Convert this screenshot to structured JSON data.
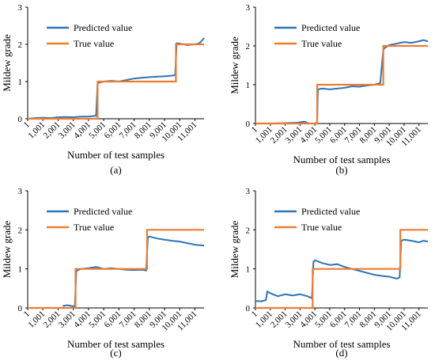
{
  "chart_data": [
    {
      "type": "line",
      "panel_label": "(a)",
      "xlabel": "Number of test samples",
      "ylabel": "Mildew grade",
      "ylim": [
        0,
        3
      ],
      "yticks": [
        "0",
        "1",
        "2",
        "3"
      ],
      "xticks": [
        "1",
        "1,001",
        "2,001",
        "3,001",
        "4,001",
        "5,001",
        "6,001",
        "7,001",
        "8,001",
        "9,001",
        "10,001",
        "11,001"
      ],
      "xlim": [
        1,
        11601
      ],
      "legend": "top-left",
      "series": [
        {
          "name": "Predicted value",
          "color": "#2E75B6",
          "x": [
            1,
            500,
            1000,
            1500,
            2000,
            2500,
            3000,
            3500,
            4000,
            4500,
            4600,
            4700,
            5000,
            5500,
            6000,
            6500,
            7000,
            7500,
            8000,
            8500,
            9000,
            9500,
            9700,
            9800,
            10000,
            10500,
            11000,
            11300,
            11500,
            11601
          ],
          "y": [
            0.0,
            0.02,
            0.03,
            0.02,
            0.04,
            0.05,
            0.04,
            0.06,
            0.06,
            0.08,
            0.95,
            0.97,
            1.0,
            1.02,
            1.0,
            1.04,
            1.08,
            1.1,
            1.12,
            1.13,
            1.14,
            1.16,
            1.17,
            2.03,
            2.02,
            1.98,
            2.0,
            2.03,
            2.12,
            2.17
          ]
        },
        {
          "name": "True value",
          "color": "#ED7D31",
          "x": [
            1,
            4600,
            4600,
            9750,
            9750,
            11601
          ],
          "y": [
            0,
            0,
            1,
            1,
            2,
            2
          ]
        }
      ]
    },
    {
      "type": "line",
      "panel_label": "(b)",
      "xlabel": "Number of test samples",
      "ylabel": "Mildew grade",
      "ylim": [
        0,
        3
      ],
      "yticks": [
        "0",
        "1",
        "2",
        "3"
      ],
      "xticks": [
        "1",
        "1,001",
        "2,001",
        "3,001",
        "4,001",
        "5,001",
        "6,001",
        "7,001",
        "8,001",
        "9,001",
        "10,001",
        "11,001"
      ],
      "xlim": [
        1,
        11601
      ],
      "legend": "top-left",
      "series": [
        {
          "name": "Predicted value",
          "color": "#2E75B6",
          "x": [
            1,
            1000,
            2000,
            2800,
            3300,
            3600,
            4000,
            4150,
            4200,
            4500,
            5000,
            5500,
            6000,
            6500,
            7000,
            7500,
            8000,
            8400,
            8600,
            8700,
            9000,
            9500,
            10000,
            10500,
            11000,
            11300,
            11601
          ],
          "y": [
            0.0,
            0.0,
            0.01,
            0.02,
            0.05,
            0.0,
            0.0,
            0.02,
            0.88,
            0.9,
            0.88,
            0.9,
            0.92,
            0.96,
            0.95,
            0.98,
            1.0,
            1.04,
            1.9,
            1.95,
            2.02,
            2.06,
            2.1,
            2.08,
            2.12,
            2.15,
            2.12
          ]
        },
        {
          "name": "True value",
          "color": "#ED7D31",
          "x": [
            1,
            4150,
            4150,
            8600,
            8600,
            11601
          ],
          "y": [
            0,
            0,
            1,
            1,
            2,
            2
          ]
        }
      ]
    },
    {
      "type": "line",
      "panel_label": "(c)",
      "xlabel": "Number of test samples",
      "ylabel": "Mildew grade",
      "ylim": [
        0,
        3
      ],
      "yticks": [
        "0",
        "1",
        "2",
        "3"
      ],
      "xticks": [
        "1",
        "1,001",
        "2,001",
        "3,001",
        "4,001",
        "5,001",
        "6,001",
        "7,001",
        "8,001",
        "9,001",
        "10,001",
        "11,001"
      ],
      "xlim": [
        1,
        11601
      ],
      "legend": "top-left",
      "series": [
        {
          "name": "Predicted value",
          "color": "#2E75B6",
          "x": [
            2300,
            2600,
            2900,
            3100,
            3200,
            3500,
            4000,
            4500,
            5000,
            5500,
            6000,
            6500,
            7000,
            7500,
            7800,
            7900,
            8000,
            8500,
            9000,
            9500,
            10000,
            10500,
            11000,
            11601
          ],
          "y": [
            0.05,
            0.07,
            0.05,
            0.03,
            0.95,
            1.0,
            1.02,
            1.05,
            1.0,
            1.02,
            1.0,
            0.98,
            0.97,
            0.98,
            0.96,
            1.8,
            1.83,
            1.78,
            1.75,
            1.72,
            1.7,
            1.66,
            1.62,
            1.6
          ]
        },
        {
          "name": "True value",
          "color": "#ED7D31",
          "x": [
            1,
            3150,
            3150,
            7850,
            7850,
            11601
          ],
          "y": [
            0,
            0,
            1,
            1,
            2,
            2
          ]
        }
      ]
    },
    {
      "type": "line",
      "panel_label": "(d)",
      "xlabel": "Number of test samples",
      "ylabel": "Mildew grade",
      "ylim": [
        0,
        3
      ],
      "yticks": [
        "0",
        "1",
        "2",
        "3"
      ],
      "xticks": [
        "1",
        "1,001",
        "2,001",
        "3,001",
        "4,001",
        "5,001",
        "6,001",
        "7,001",
        "8,001",
        "9,001",
        "10,001",
        "11,001"
      ],
      "xlim": [
        1,
        11601
      ],
      "legend": "top-left",
      "series": [
        {
          "name": "Predicted value",
          "color": "#2E75B6",
          "x": [
            1,
            400,
            700,
            800,
            1000,
            1500,
            2000,
            2500,
            3000,
            3500,
            3800,
            3900,
            4000,
            4500,
            5000,
            5500,
            6000,
            6500,
            7000,
            7500,
            8000,
            8500,
            9000,
            9500,
            9700,
            9800,
            10000,
            10500,
            11000,
            11300,
            11601
          ],
          "y": [
            0.18,
            0.17,
            0.2,
            0.42,
            0.38,
            0.3,
            0.35,
            0.32,
            0.35,
            0.3,
            0.25,
            1.18,
            1.22,
            1.15,
            1.1,
            1.12,
            1.05,
            1.0,
            0.95,
            0.9,
            0.85,
            0.82,
            0.8,
            0.75,
            0.78,
            1.72,
            1.75,
            1.72,
            1.68,
            1.72,
            1.7
          ]
        },
        {
          "name": "True value",
          "color": "#ED7D31",
          "x": [
            1,
            3850,
            3850,
            9750,
            9750,
            11601
          ],
          "y": [
            0,
            0,
            1,
            1,
            2,
            2
          ]
        }
      ]
    }
  ]
}
